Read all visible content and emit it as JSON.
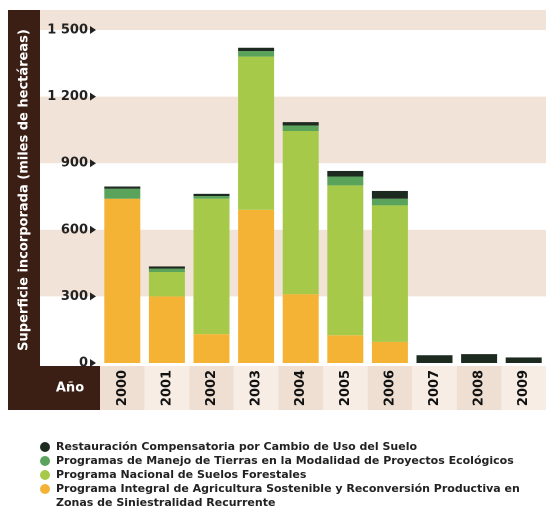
{
  "chart_data": {
    "type": "stacked_bar",
    "y_label": "Superficie incorporada (miles de hectáreas)",
    "x_label": "Año",
    "categories": [
      "2000",
      "2001",
      "2002",
      "2003",
      "2004",
      "2005",
      "2006",
      "2007",
      "2008",
      "2009"
    ],
    "series": [
      {
        "name": "Restauración Compensatoria por Cambio de Uso del Suelo",
        "color": "#1d2a1f",
        "values": [
          10,
          10,
          10,
          15,
          15,
          25,
          35,
          35,
          40,
          25
        ]
      },
      {
        "name": "Programas de Manejo de Tierras en la Modalidad de Proyectos Ecológicos",
        "color": "#5aa35a",
        "values": [
          45,
          15,
          12,
          25,
          25,
          40,
          30,
          0,
          0,
          0
        ]
      },
      {
        "name": "Programa Nacional de Suelos Forestales",
        "color": "#a6c94a",
        "values": [
          0,
          110,
          610,
          690,
          735,
          675,
          615,
          0,
          0,
          0
        ]
      },
      {
        "name": "Programa Integral de Agricultura Sostenible y Reconversión Productiva en Zonas de Siniestralidad Recurrente",
        "color": "#f5b335",
        "values": [
          740,
          300,
          130,
          690,
          310,
          125,
          95,
          0,
          0,
          0
        ]
      }
    ],
    "ylim": [
      0,
      1600
    ],
    "yticks": [
      0,
      300,
      600,
      900,
      {
        "value": 1200,
        "label": "1 200"
      },
      {
        "value": 1500,
        "label": "1 500"
      }
    ]
  }
}
